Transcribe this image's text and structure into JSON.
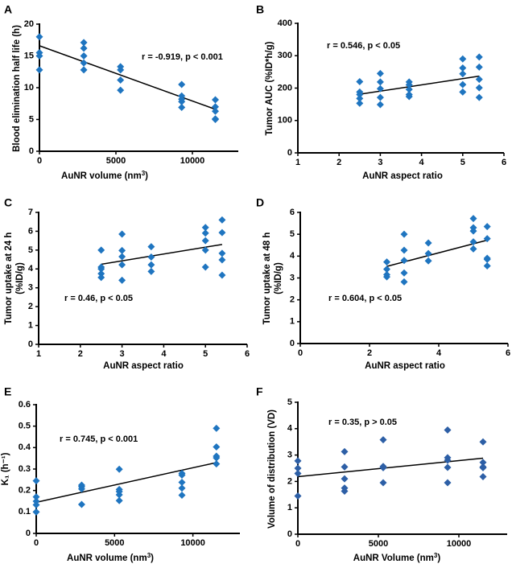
{
  "chart_data": [
    {
      "panel": "A",
      "type": "scatter",
      "title": "",
      "xlabel": "AuNR volume (nm³)",
      "ylabel": "Blood elimination half life (h)",
      "xlim": [
        0,
        13000
      ],
      "ylim": [
        0,
        20
      ],
      "xticks": [
        0,
        5000,
        10000
      ],
      "yticks": [
        0,
        5,
        10,
        15,
        20
      ],
      "annotation": "r = -0.919, p < 0.001",
      "annotation_pos": "upper-right",
      "points": [
        [
          0,
          18.0
        ],
        [
          0,
          15.5
        ],
        [
          0,
          15.0
        ],
        [
          0,
          12.8
        ],
        [
          2900,
          17.1
        ],
        [
          2900,
          16.2
        ],
        [
          2900,
          15.0
        ],
        [
          2900,
          13.9
        ],
        [
          2900,
          12.8
        ],
        [
          5300,
          13.3
        ],
        [
          5300,
          12.8
        ],
        [
          5300,
          11.2
        ],
        [
          5300,
          9.6
        ],
        [
          9300,
          10.5
        ],
        [
          9300,
          8.7
        ],
        [
          9300,
          8.2
        ],
        [
          9300,
          7.8
        ],
        [
          9300,
          6.9
        ],
        [
          11500,
          8.1
        ],
        [
          11500,
          7.0
        ],
        [
          11500,
          6.3
        ],
        [
          11500,
          5.1
        ],
        [
          11500,
          5.0
        ]
      ],
      "fit": [
        [
          0,
          16.6
        ],
        [
          11500,
          6.6
        ]
      ],
      "marker_color": "#1f75c0"
    },
    {
      "panel": "B",
      "type": "scatter",
      "title": "",
      "xlabel": "AuNR aspect ratio",
      "ylabel": "Tumor AUC (%ID*h/g)",
      "xlim": [
        1,
        6
      ],
      "ylim": [
        0,
        400
      ],
      "xticks": [
        1,
        2,
        3,
        4,
        5,
        6
      ],
      "yticks": [
        0,
        100,
        200,
        300,
        400
      ],
      "annotation": "r = 0.546, p < 0.05",
      "annotation_pos": "upper-left",
      "points": [
        [
          2.5,
          220
        ],
        [
          2.5,
          188
        ],
        [
          2.5,
          180
        ],
        [
          2.5,
          168
        ],
        [
          2.5,
          153
        ],
        [
          3.0,
          245
        ],
        [
          3.0,
          219
        ],
        [
          3.0,
          198
        ],
        [
          3.0,
          171
        ],
        [
          3.0,
          149
        ],
        [
          3.7,
          219
        ],
        [
          3.7,
          210
        ],
        [
          3.7,
          196
        ],
        [
          3.7,
          180
        ],
        [
          3.7,
          174
        ],
        [
          5.0,
          290
        ],
        [
          5.0,
          262
        ],
        [
          5.0,
          244
        ],
        [
          5.0,
          211
        ],
        [
          5.0,
          188
        ],
        [
          5.4,
          296
        ],
        [
          5.4,
          265
        ],
        [
          5.4,
          227
        ],
        [
          5.4,
          201
        ],
        [
          5.4,
          171
        ]
      ],
      "fit": [
        [
          2.5,
          181
        ],
        [
          5.4,
          237
        ]
      ],
      "marker_color": "#1f75c0"
    },
    {
      "panel": "C",
      "type": "scatter",
      "title": "",
      "xlabel": "AuNR aspect ratio",
      "ylabel": "Tumor uptake at 24 h (%ID/g)",
      "xlim": [
        1,
        6
      ],
      "ylim": [
        0,
        7
      ],
      "xticks": [
        1,
        2,
        3,
        4,
        5,
        6
      ],
      "yticks": [
        0,
        1,
        2,
        3,
        4,
        5,
        6,
        7
      ],
      "annotation": "r = 0.46, p < 0.05",
      "annotation_pos": "middle-left",
      "points": [
        [
          2.5,
          5.0
        ],
        [
          2.5,
          4.1
        ],
        [
          2.5,
          4.0
        ],
        [
          2.5,
          3.75
        ],
        [
          2.5,
          3.55
        ],
        [
          3.0,
          5.85
        ],
        [
          3.0,
          4.98
        ],
        [
          3.0,
          4.65
        ],
        [
          3.0,
          4.22
        ],
        [
          3.0,
          3.4
        ],
        [
          3.7,
          5.18
        ],
        [
          3.7,
          4.63
        ],
        [
          3.7,
          4.22
        ],
        [
          3.7,
          3.87
        ],
        [
          5.0,
          6.2
        ],
        [
          5.0,
          5.9
        ],
        [
          5.0,
          5.5
        ],
        [
          5.0,
          5.0
        ],
        [
          5.0,
          4.1
        ],
        [
          5.4,
          6.6
        ],
        [
          5.4,
          5.93
        ],
        [
          5.4,
          4.83
        ],
        [
          5.4,
          4.48
        ],
        [
          5.4,
          3.67
        ]
      ],
      "fit": [
        [
          2.5,
          4.25
        ],
        [
          5.4,
          5.3
        ]
      ],
      "marker_color": "#1f75c0"
    },
    {
      "panel": "D",
      "type": "scatter",
      "title": "",
      "xlabel": "AuNR aspect ratio",
      "ylabel": "Tumor uptake at 48 h (%ID/g)",
      "xlim": [
        0,
        6
      ],
      "ylim": [
        0,
        6
      ],
      "xticks": [
        0,
        2,
        4,
        6
      ],
      "yticks": [
        0,
        1,
        2,
        3,
        4,
        5,
        6
      ],
      "annotation": "r = 0.604, p < 0.05",
      "annotation_pos": "middle-left",
      "points": [
        [
          2.5,
          3.73
        ],
        [
          2.5,
          3.4
        ],
        [
          2.5,
          3.15
        ],
        [
          2.5,
          3.05
        ],
        [
          3.0,
          5.0
        ],
        [
          3.0,
          4.27
        ],
        [
          3.0,
          3.8
        ],
        [
          3.0,
          3.23
        ],
        [
          3.0,
          2.82
        ],
        [
          3.7,
          4.6
        ],
        [
          3.7,
          4.12
        ],
        [
          3.7,
          3.78
        ],
        [
          5.0,
          5.72
        ],
        [
          5.0,
          5.3
        ],
        [
          5.0,
          5.15
        ],
        [
          5.0,
          4.65
        ],
        [
          5.0,
          4.33
        ],
        [
          5.4,
          5.35
        ],
        [
          5.4,
          4.8
        ],
        [
          5.4,
          3.9
        ],
        [
          5.4,
          3.85
        ],
        [
          5.4,
          3.55
        ]
      ],
      "fit": [
        [
          2.5,
          3.53
        ],
        [
          5.4,
          4.73
        ]
      ],
      "marker_color": "#1f75c0"
    },
    {
      "panel": "E",
      "type": "scatter",
      "title": "",
      "xlabel": "AuNR volume (nm³)",
      "ylabel": "K₁ (h⁻¹)",
      "xlim": [
        0,
        13000
      ],
      "ylim": [
        0,
        0.6
      ],
      "xticks": [
        0,
        5000,
        10000
      ],
      "yticks": [
        0,
        0.1,
        0.2,
        0.3,
        0.4,
        0.5,
        0.6
      ],
      "annotation": "r = 0.745, p < 0.001",
      "annotation_pos": "upper-left",
      "points": [
        [
          0,
          0.245
        ],
        [
          0,
          0.17
        ],
        [
          0,
          0.15
        ],
        [
          0,
          0.133
        ],
        [
          0,
          0.1
        ],
        [
          2900,
          0.225
        ],
        [
          2900,
          0.218
        ],
        [
          2900,
          0.207
        ],
        [
          2900,
          0.135
        ],
        [
          5300,
          0.299
        ],
        [
          5300,
          0.205
        ],
        [
          5300,
          0.195
        ],
        [
          5300,
          0.18
        ],
        [
          5300,
          0.153
        ],
        [
          9300,
          0.28
        ],
        [
          9300,
          0.272
        ],
        [
          9300,
          0.238
        ],
        [
          9300,
          0.211
        ],
        [
          9300,
          0.178
        ],
        [
          11500,
          0.49
        ],
        [
          11500,
          0.403
        ],
        [
          11500,
          0.36
        ],
        [
          11500,
          0.352
        ],
        [
          11500,
          0.324
        ]
      ],
      "fit": [
        [
          0,
          0.145
        ],
        [
          11500,
          0.33
        ]
      ],
      "marker_color": "#1f75c0"
    },
    {
      "panel": "F",
      "type": "scatter",
      "title": "",
      "xlabel": "AuNR Volume (nm³)",
      "ylabel": "Volume of distribution (VD)",
      "xlim": [
        0,
        13000
      ],
      "ylim": [
        0,
        5
      ],
      "xticks": [
        0,
        5000,
        10000
      ],
      "yticks": [
        0,
        1,
        2,
        3,
        4,
        5
      ],
      "annotation": "r = 0.35, p > 0.05",
      "annotation_pos": "upper-left",
      "points": [
        [
          0,
          2.78
        ],
        [
          0,
          2.5
        ],
        [
          0,
          2.3
        ],
        [
          0,
          1.45
        ],
        [
          2900,
          3.13
        ],
        [
          2900,
          2.55
        ],
        [
          2900,
          2.1
        ],
        [
          2900,
          1.75
        ],
        [
          2900,
          1.63
        ],
        [
          5300,
          3.58
        ],
        [
          5300,
          2.57
        ],
        [
          5300,
          2.52
        ],
        [
          5300,
          1.95
        ],
        [
          9300,
          3.95
        ],
        [
          9300,
          2.9
        ],
        [
          9300,
          2.8
        ],
        [
          9300,
          2.53
        ],
        [
          9300,
          1.95
        ],
        [
          11500,
          3.5
        ],
        [
          11500,
          2.72
        ],
        [
          11500,
          2.55
        ],
        [
          11500,
          2.52
        ],
        [
          11500,
          2.18
        ]
      ],
      "fit": [
        [
          0,
          2.18
        ],
        [
          11500,
          2.88
        ]
      ],
      "marker_color": "#2d5fa6"
    }
  ]
}
